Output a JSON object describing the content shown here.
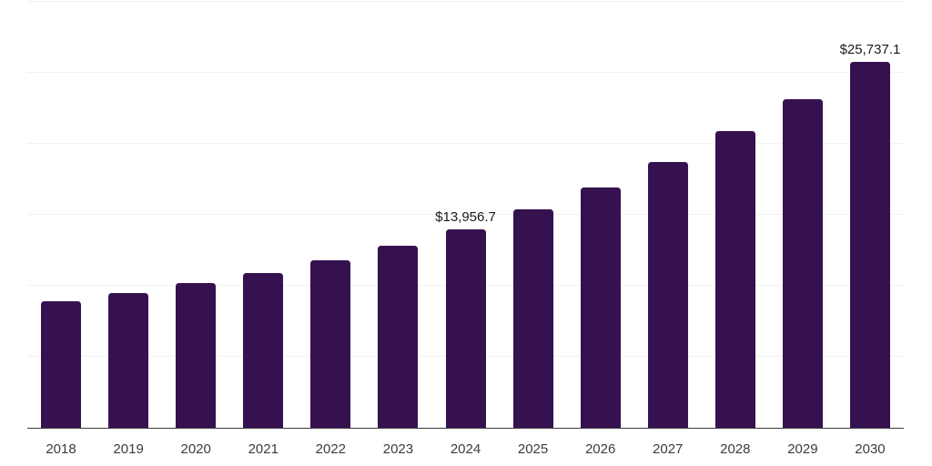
{
  "chart_data": {
    "type": "bar",
    "title": "",
    "xlabel": "",
    "ylabel": "",
    "categories": [
      "2018",
      "2019",
      "2020",
      "2021",
      "2022",
      "2023",
      "2024",
      "2025",
      "2026",
      "2027",
      "2028",
      "2029",
      "2030"
    ],
    "values": [
      8900,
      9440,
      10160,
      10870,
      11780,
      12810,
      13956.7,
      15400,
      16890,
      18710,
      20870,
      23150,
      25737.1
    ],
    "data_labels": {
      "2024": "$13,956.7",
      "2030": "$25,737.1"
    },
    "ylim": [
      0,
      30000
    ],
    "grid_step": 5000,
    "grid": true,
    "legend": "none",
    "bar_color": "#361150",
    "gridline_color": "#f1f1f1",
    "axis_line_color": "#3c3c3c",
    "value_label_color": "#1b1b1b",
    "tick_label_color": "#3c3c3c",
    "background_color": "#ffffff"
  }
}
